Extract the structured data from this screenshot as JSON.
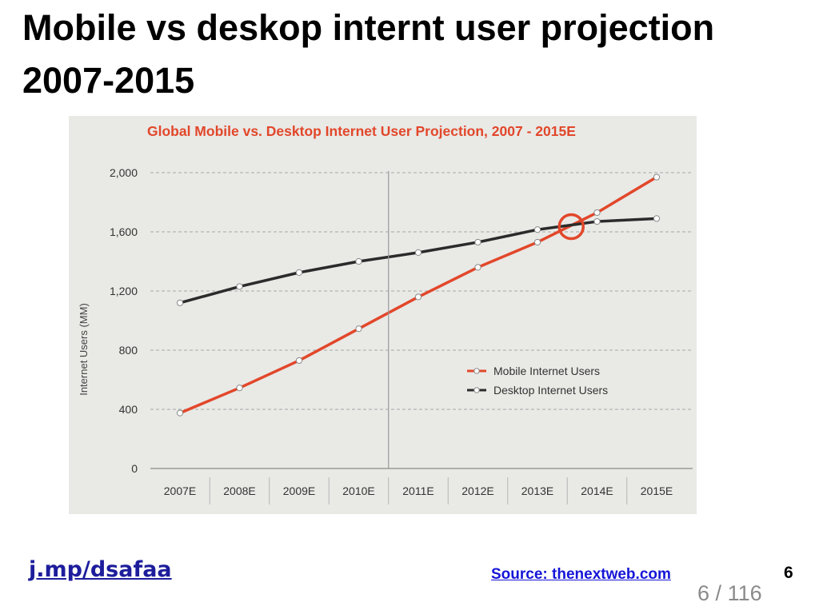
{
  "slide": {
    "title": "Mobile vs deskop internt user projection 2007-2015",
    "short_link": "j.mp/dsafaa",
    "source": "Source: thenextweb.com",
    "slide_number": "6",
    "page_current": "6",
    "page_separator": "/",
    "page_total": "116"
  },
  "colors": {
    "mobile": "#e2472a",
    "desktop": "#2b2b2b",
    "chart_title": "#e2472a",
    "highlight_circle": "#e2472a"
  },
  "chart_data": {
    "type": "line",
    "title": "Global Mobile vs. Desktop Internet User Projection, 2007 - 2015E",
    "xlabel": "",
    "ylabel": "Internet Users (MM)",
    "categories": [
      "2007E",
      "2008E",
      "2009E",
      "2010E",
      "2011E",
      "2012E",
      "2013E",
      "2014E",
      "2015E"
    ],
    "ylim": [
      0,
      2000
    ],
    "yticks": [
      "0",
      "400",
      "800",
      "1,200",
      "1,600",
      "2,000"
    ],
    "ytick_values": [
      0,
      400,
      800,
      1200,
      1600,
      2000
    ],
    "series": [
      {
        "name": "Mobile Internet Users",
        "values": [
          375,
          545,
          730,
          945,
          1160,
          1360,
          1530,
          1730,
          1970
        ]
      },
      {
        "name": "Desktop Internet Users",
        "values": [
          1120,
          1230,
          1325,
          1400,
          1460,
          1530,
          1615,
          1670,
          1690
        ]
      }
    ],
    "grid": "horizontal dashed",
    "legend": "bottom-right",
    "annotations": [
      {
        "type": "vertical-divider",
        "after_category": "2010E"
      },
      {
        "type": "crossover-circle",
        "between": [
          "2013E",
          "2014E"
        ]
      }
    ]
  }
}
